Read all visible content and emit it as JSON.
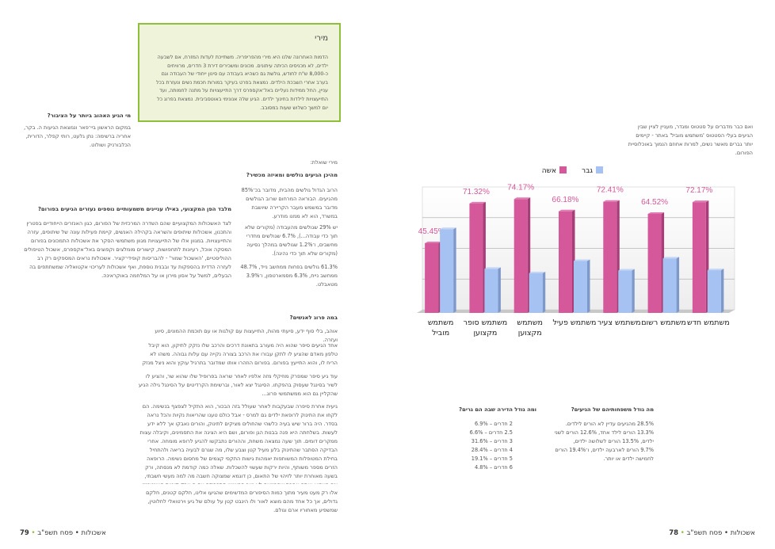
{
  "left_page": {
    "sidebar_q": "מי הגיע האהוב ביותר על הציבור?",
    "sidebar_a": "במקום הראשון ביי־פאר ונמצאת הגיעות ה. בקר, אחריה ברשימה: נתן גלעט, רותי קפלר, הדורית, הכלבורניק ושולוט.",
    "miri_box": {
      "title": "מירי",
      "body": "הדמות האחרונה שלנו היא מירי מהפריפריה. משתייכת לעדות המזרח, אם לשבעה ילדים, לא מכניסים הכיתה עיתונים. מכונים ומשכירים דירת 3 חדרים, מרוויחים כ-8,000 ש\"ח לחודש, גולשת גם כשהיא בעבודה עם סינון ייחודי של העבודה וגם בערב אחרי השבכת הילדים. נמצאת בפרט בעיקר במורות חכמת נשים ונעזרת בכל עניין, החל ממידות נעליים באל־אקספרס דרך התייעצויות על מתנה לחמותה, ועד התייעצויות לילדות בחינוך ילדים. הגיע שלה אנונימי באוטסביבית. נמצאת בפרוג כל יום למשך כשלוש שעות במסובב."
    },
    "interview_intro": "מירי שואלת:",
    "q1": "מהיכן הגיעים גולשים ומאיזה מכשיר?",
    "a1_p1": "הרוב הגדול גולשים מהבית, מדובר בכ־85% מהגיעים. הבוראה המרחום שרוב הגולשים מדובר במשמש מעבר הקריירה שיושבת במשרד, הוא לא ממנו מודרע.",
    "a1_p2": "יש 29% שגולשים מהעבודה (מקורים שלא תוך כדי עבודה...), 6.7% שגולשים מחדרי מחשבים, ו־1.2% שגולשים במהלך נסיעה (מקורים שלא תוך כדי נהיגה).",
    "a1_p3": "61.3% גולשים בפחות ממחשב נייד, 48.7% ממחשב נייח, 6.3% מסמארטפון, ו־3.9% מטאבלט.",
    "q2": "מלבד הפן המקצועי, באילו עניינים משמעותיים נוספים נעזרים הגיעים בפורום?",
    "a2": "לצד האשכולות המקצועיים שהם השדרה המרכזית של הפורום, כגון האנזרים הייחודיים בפטרין והתכנון, אשכולות שיתופים והשראה בקהילה האנשים, קיימת פעילות עונה של שיתופים, עזרה והתייעצויות. במגוון אלו של התייעצויות מגוון משתמשי הסקר את אשכולות התמכונים בפורום המסקה אוכל, רעיונות לתחפושות, קישורים מומלצים וקפוצים באל־אקספרס, אשכול הטיפולים ההוליסטיים, 'האשכול שמור' - להבריסות קופידי־קציר. אשכולות נראים המספקים רק רב לעזרה הדדית בהספקות עד ובבנית נוספת, ואף אשכולות לעריכוי אקטואליה שמשתתפים בה הבעלים, למשל על אסון מירון או על המלחמה באוקראינה.",
    "q3": "במה פרוג לאנשים?",
    "a3_p1": "אוהב, בלי סוף ידע, סיעתי מהות, התייעצות עם קולגות או עם תוכמת ההמונים, סיוע ועזרה.",
    "a3_p2": "אחד הגיעים סיפר שהוא היה מעורב בתאונת דרכים והרכב שלו נזקק לתיקון, הוא קיבל טלפון מאדם שהציע לו לתקן עבורו את הרכב בצורה נקייה עם עלות גבוהה. משהו לא הריח לו, והוא התייעץ בפורום. בפורום הוזהרו אותו שמדובר בתרגיל עוקץ והוא ניצל מנזק של אלפי שקלים.",
    "a3_p3": "עוד גיע סיפר שמפרק מוזיקלי מזה אלפיו לאחר שראה בפרופיל שלו שהוא שר, והציע לו לשיר בסינגל שעסוק בהפקתו. הסינגל יצא לאור, וברשימת הקרדיטים על הסינגל גילה הגיע שהקליין גם הוא ממשתמשי פרוג...",
    "a3_p4": "גיעית אחרת סיפרה שבעקבות לאחר שעולל בזה הבכור, הוא התקיל לצפצף בנשימה. הם לקחו את התינוק לרופאת ילדים גם למרס - אבל כולם טענו שהריאות נקיות והכל נראה בסדר. היה ברור שיש בעיה כלשהי שהחולים מציקים לתינוק, והורים נאבקו אך ללא ידע לעשות. בשלחתה היא פנה בבנות הגן ופורום, ושם היא הציגה את התסמינים, וקיבלה עצות ממקרים דומים. תוך שעה נמצאה משחת, וההורים נתבקשו להגיע לרופא מומחה. אחרי הבדיקה הסתבר שהתינוק בלע מעיל קטן וצבע שלו, מה שגרם לבעיה בריאה ולהתחיל בחילת המטופלות המשותפות יאמהות גישות התקפי קצמים של מחסום נשימה. הרופאה הזרים מספר משותף, והיות ירקות שעשוי להשכלות. שאלה כמה קודמת לא מנסתה, ורק בשעה מאוחרת יותר לזיהוי של התאום, כן דוגמא שמצוקה חשבה מה למה מעשי חשבתי, וגם כשהיא אותה אחרת שהרגישה לא טוב הפושיש סתכבודה עם ה אבק קוניות האינטרנט, ורק שהודה לבעלות ההשכל גם אותה מולצון ירקות לאיחור רפואה ושיוש בשתגירות על תרוקבת ההתנהגוסטית אבל ואנשם.",
    "a3_p5": "אלו רק מעט מעיר מתוך כמות הסיפורים המדשימים שהגיעו אלינו, חלקם קטנים, חלקם גדולים, אך כל אחד מהם מוצא לאור ולו הינבט קטן על עולם של גיע וירטואלי לחלוטין, שמשפיע מאחוריו ארם וגולם.",
    "stats_kids_title": "מה גודל משפחותיהם של הגיעים?",
    "stats_kids": [
      "28.5% מהגיעים עדיין לא הורים לילדים.",
      "13.3% הורים לילד אחד, 12.6% הורים לשני ילדים, 13.5% הורים לשלושה ילדים,",
      "9.7% הורים לארבעה ילדים, ו־19.4% הורים לחמישה ילדים או יותר."
    ],
    "stats_rooms_title": "ומה גודל הדירה שבה הם גרים?",
    "stats_rooms": [
      "2 חדרים – 6.9%",
      "2.5 חדרים – 6.6%",
      "3 חדרים – 31.6%",
      "4 חדרים – 28.4%",
      "5 חדרים – 19.1%",
      "6 חדרים – 4.8%"
    ],
    "footer_num": "79",
    "footer_text": "אשכולות • פסח תשפ\"ב"
  },
  "right_page": {
    "intro": "ואם כבר מדברים על סטטוס ומגדר, מעניין לציין שבין הגיעים בעלי הסטטוס 'משתמש מוביל' באתר - קיימים יותר גברים מאשר נשים, למרות אחוזם הנמוך באוכלוסיית הפורום.",
    "footer_num": "78",
    "footer_text": "אשכולות • פסח תשפ\"ב"
  },
  "chart_data": {
    "type": "bar",
    "categories": [
      "משתמש חדש",
      "משתמש רשום",
      "משתמש צעיר",
      "משתמש פעיל",
      "משתמש מקצוען",
      "משתמש סופר מקצוען",
      "משתמש מוביל"
    ],
    "category_lines": [
      [
        "משתמש חדש"
      ],
      [
        "משתמש רשום"
      ],
      [
        "משתמש צעיר"
      ],
      [
        "משתמש פעיל"
      ],
      [
        "משתמש",
        "מקצוען"
      ],
      [
        "משתמש סופר",
        "מקצוען"
      ],
      [
        "משתמש",
        "מוביל"
      ]
    ],
    "series": [
      {
        "name": "אשה",
        "values": [
          72.17,
          64.52,
          72.41,
          66.18,
          74.17,
          71.32,
          45.45
        ],
        "labels": [
          "72.17%",
          "64.52%",
          "72.41%",
          "66.18%",
          "74.17%",
          "71.32%",
          "45.45%"
        ],
        "color": "#d4589a"
      },
      {
        "name": "גבר",
        "values": [
          27.83,
          35.48,
          27.59,
          33.82,
          25.83,
          28.68,
          54.55
        ],
        "color": "#a5c2f2"
      }
    ],
    "ylim": [
      0,
      80
    ],
    "grid": true,
    "legend": "top"
  }
}
